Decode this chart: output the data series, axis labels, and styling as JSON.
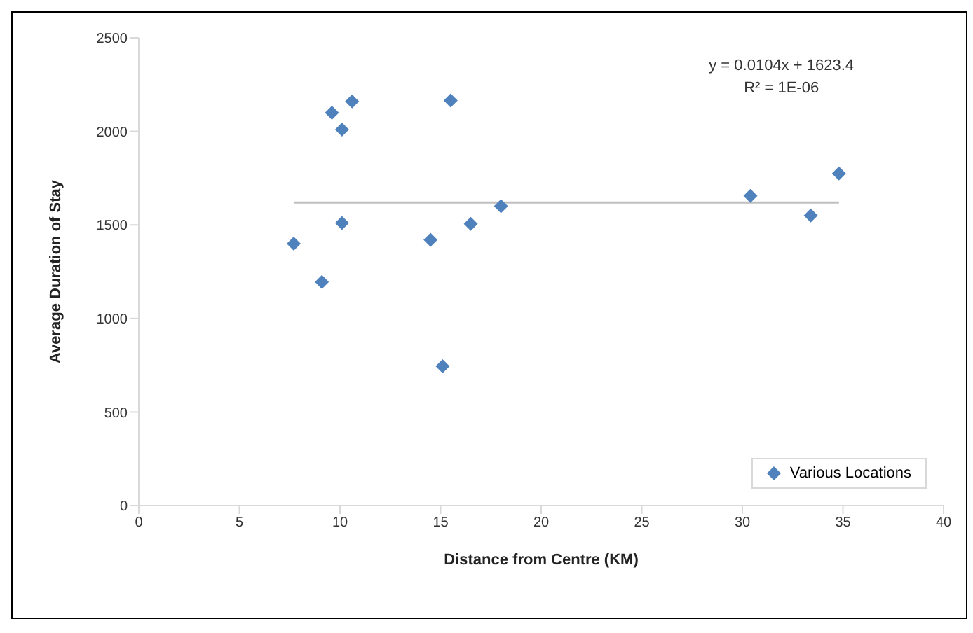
{
  "chart_data": {
    "type": "scatter",
    "xlabel": "Distance from Centre (KM)",
    "ylabel": "Average Duration of Stay",
    "annotations": [
      "y = 0.0104x + 1623.4",
      "R² = 1E-06"
    ],
    "xlim": [
      0,
      40
    ],
    "xticks": [
      0,
      5,
      10,
      15,
      20,
      25,
      30,
      35,
      40
    ],
    "ylim": [
      0,
      2500
    ],
    "yticks": [
      0,
      500,
      1000,
      1500,
      2000,
      2500
    ],
    "grid": false,
    "legend": "bottom right",
    "series": [
      {
        "name": "Various Locations",
        "color": "#4f81bd",
        "marker": "diamond",
        "x": [
          7.7,
          9.1,
          9.6,
          10.1,
          10.6,
          10.1,
          14.5,
          15.1,
          15.5,
          16.5,
          18.0,
          30.4,
          33.4,
          34.8
        ],
        "values": [
          1400,
          1195,
          2100,
          2010,
          2160,
          1510,
          1420,
          745,
          2165,
          1505,
          1600,
          1655,
          1550,
          1775
        ]
      },
      {
        "type": "line",
        "color": "#bfbfbf",
        "x": [
          7.7,
          34.8
        ],
        "values": [
          1620,
          1620
        ],
        "marker": "none"
      }
    ]
  }
}
